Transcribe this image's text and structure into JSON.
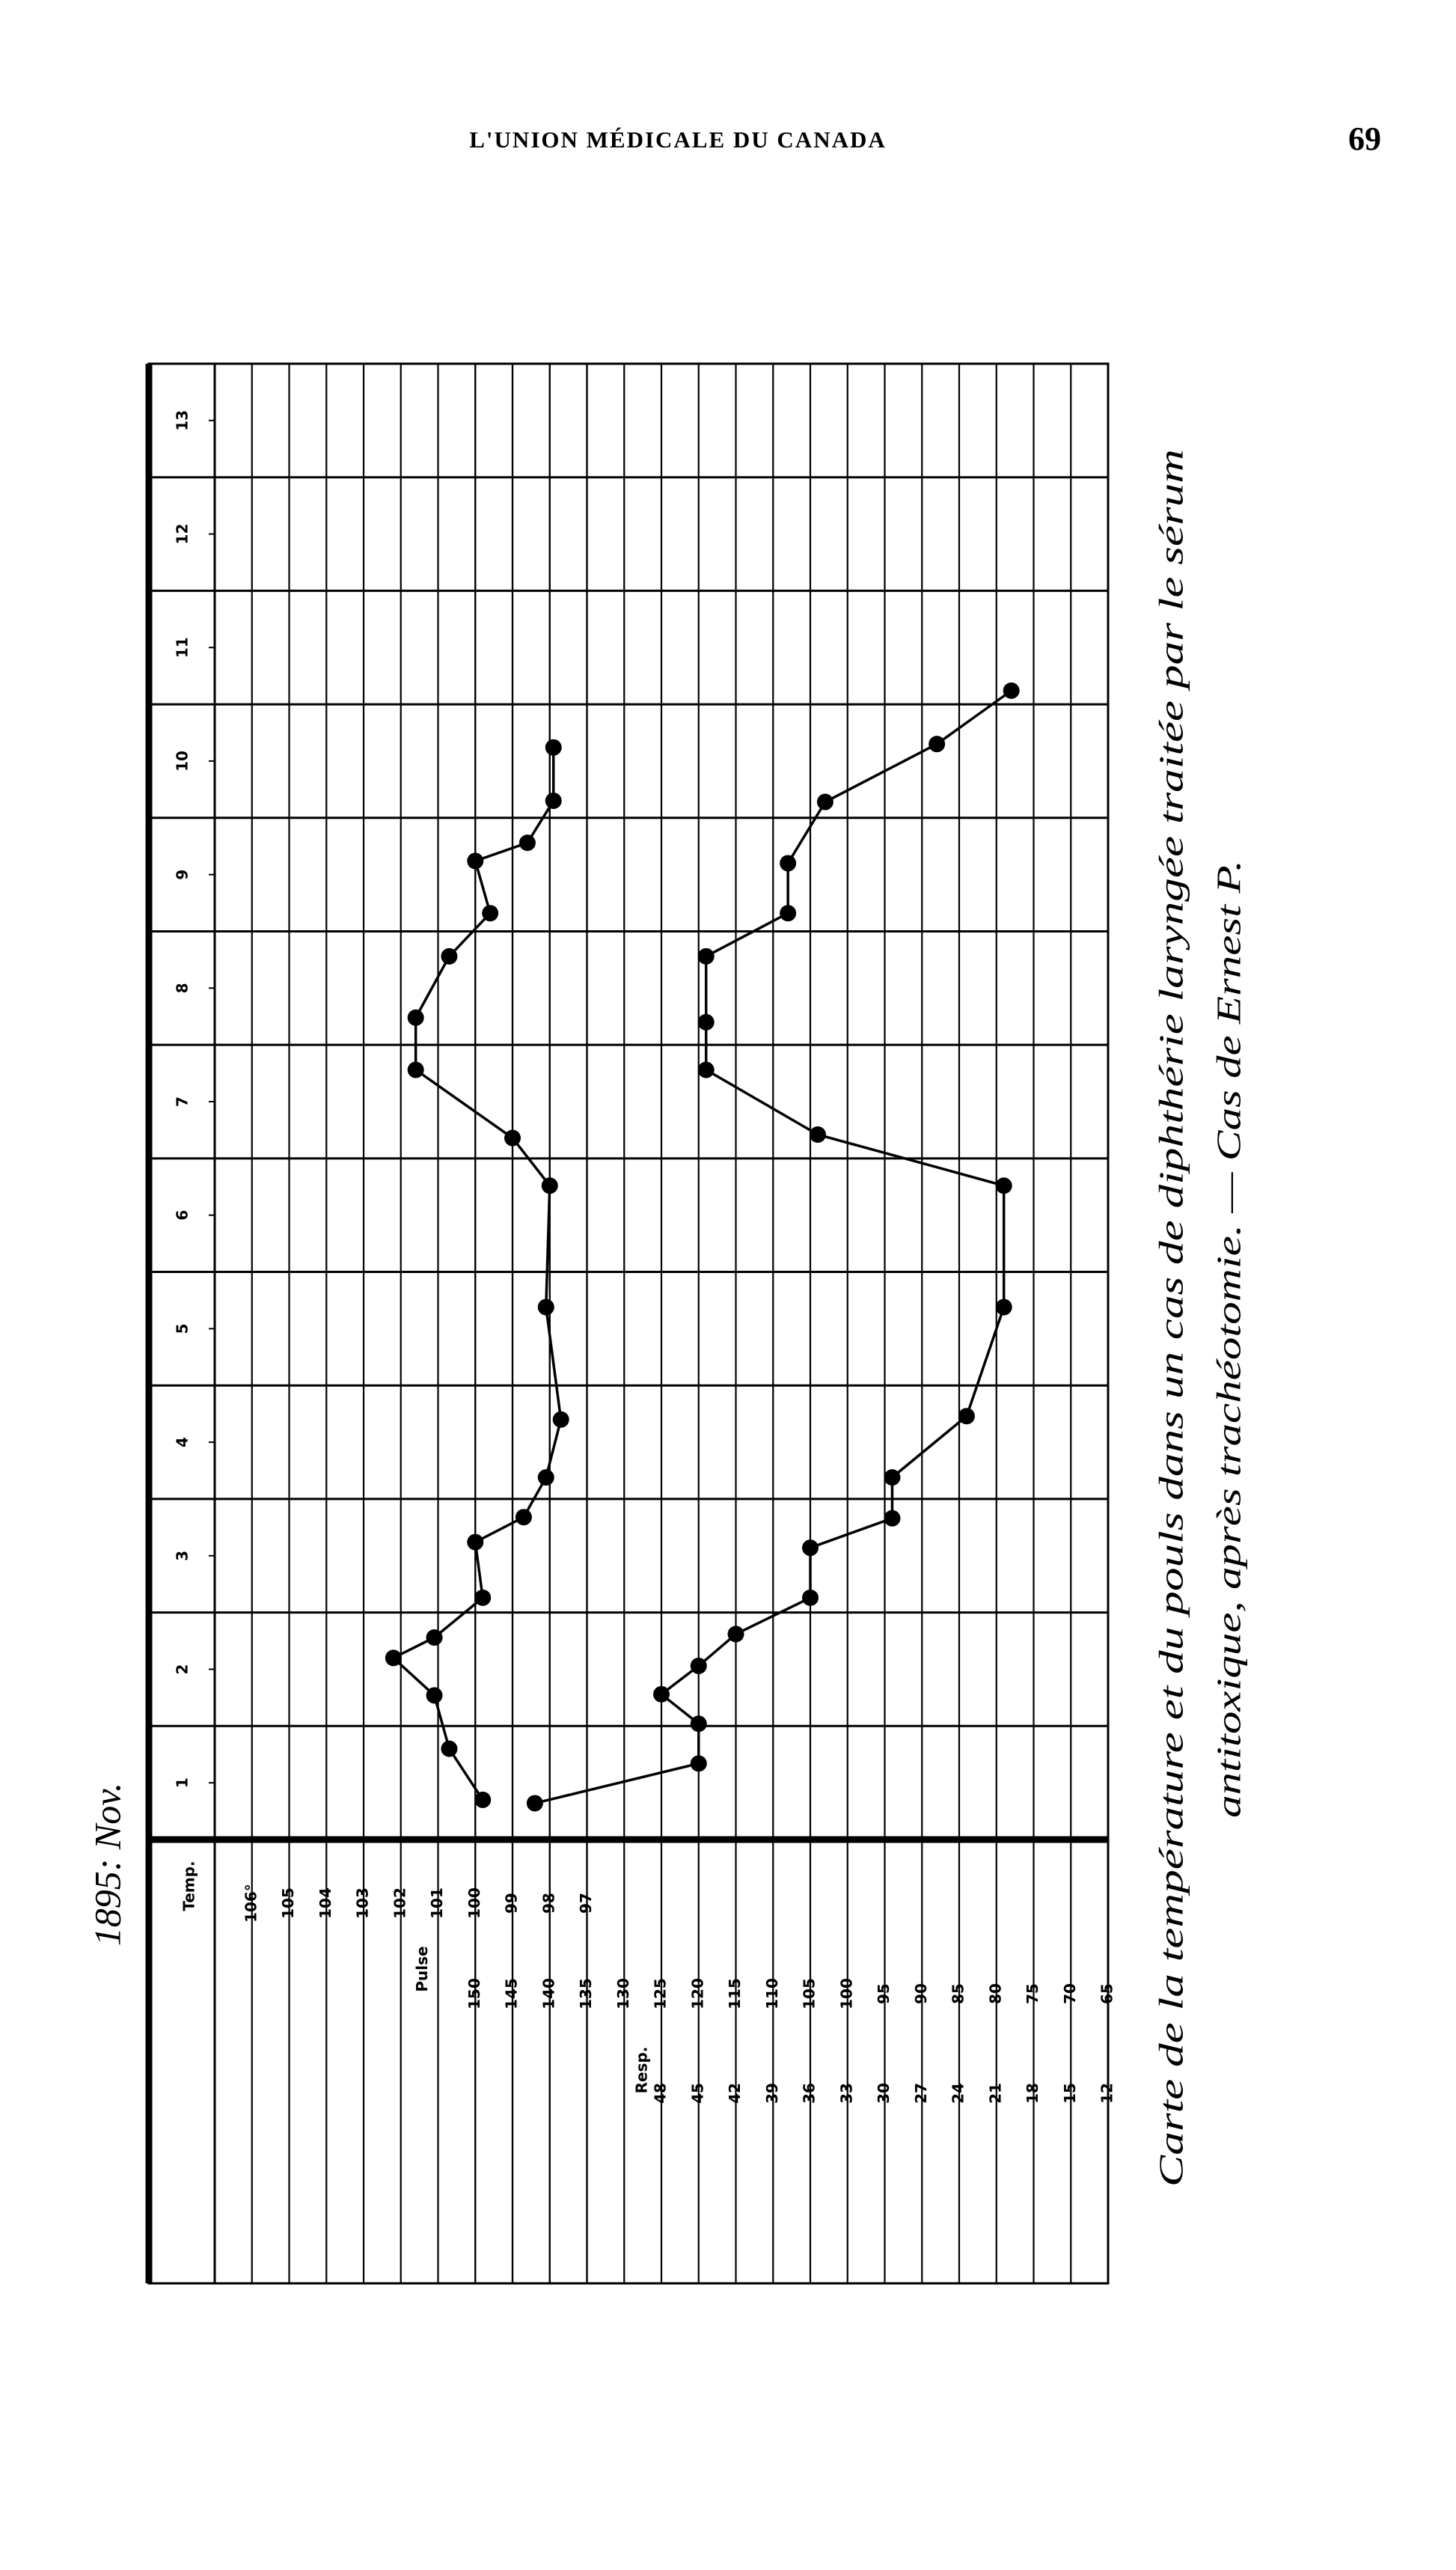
{
  "page_header": "L'UNION MÉDICALE DU CANADA",
  "page_number": 69,
  "chart_data": {
    "type": "line",
    "annotation": "1895: Nov.",
    "xlim": [
      0.5,
      13.5
    ],
    "xticks": [
      1,
      2,
      3,
      4,
      5,
      6,
      7,
      8,
      9,
      10,
      11,
      12,
      13
    ],
    "ylabel": "Temp.",
    "ylim": [
      83,
      107
    ],
    "yticks": [
      97,
      98,
      99,
      100,
      101,
      102,
      103,
      104,
      105,
      {
        "value": 106,
        "label": "106°"
      }
    ],
    "y2label": "Pulse",
    "y2lim": [
      65,
      185
    ],
    "y2ticks": [
      65,
      70,
      75,
      80,
      85,
      90,
      95,
      100,
      105,
      110,
      115,
      120,
      125,
      130,
      135,
      140,
      145,
      150
    ],
    "y3label": "Resp.",
    "y3lim": [
      12,
      84
    ],
    "y3ticks": [
      12,
      15,
      18,
      21,
      24,
      27,
      30,
      33,
      36,
      39,
      42,
      45,
      48
    ],
    "grid": true,
    "series": [
      {
        "color": "#000000",
        "x": [
          0.85,
          1.3,
          1.77,
          2.1,
          2.28,
          2.63,
          3.12,
          3.34,
          3.69,
          4.2,
          5.19,
          6.26,
          6.68,
          7.28,
          7.74,
          8.28,
          8.66,
          9.12,
          9.28,
          9.65,
          10.12
        ],
        "values": [
          99.8,
          100.7,
          101.1,
          102.2,
          101.1,
          99.8,
          100.0,
          98.7,
          98.1,
          97.7,
          98.1,
          98.0,
          99.0,
          101.6,
          101.6,
          100.7,
          99.6,
          100.0,
          98.6,
          97.9,
          97.9
        ]
      },
      {
        "color": "#000000",
        "axis": "y2",
        "x": [
          0.82,
          1.17,
          1.52,
          1.78,
          2.03,
          2.31,
          2.63,
          3.07,
          3.33,
          3.69,
          4.23,
          5.19,
          6.26,
          6.71,
          7.28,
          7.7,
          8.28,
          8.66,
          9.1,
          9.64,
          10.15,
          10.62
        ],
        "values": [
          142,
          120,
          120,
          125,
          120,
          115,
          105,
          105,
          94,
          94,
          84,
          79,
          79,
          104,
          119,
          119,
          119,
          108,
          108,
          103,
          88,
          78
        ]
      }
    ],
    "caption": [
      "Carte de la température et du pouls dans un cas de diphthérie laryngée traitée par le sérum",
      "antitoxique, après trachéotomie. — Cas de Ernest P."
    ]
  }
}
